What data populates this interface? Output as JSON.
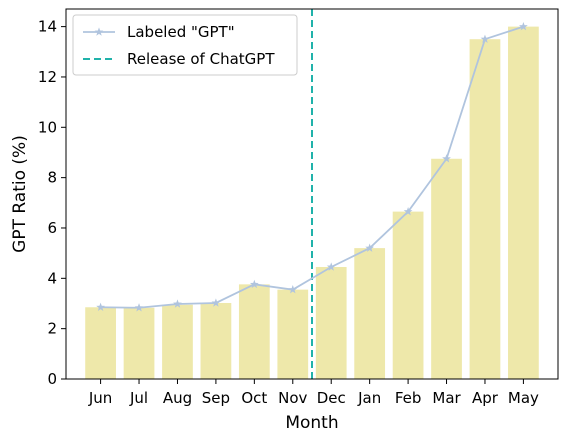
{
  "chart_data": {
    "type": "bar",
    "categories": [
      "Jun",
      "Jul",
      "Aug",
      "Sep",
      "Oct",
      "Nov",
      "Dec",
      "Jan",
      "Feb",
      "Mar",
      "Apr",
      "May"
    ],
    "series": [
      {
        "kind": "bar",
        "values": [
          2.85,
          2.83,
          2.95,
          3.02,
          3.76,
          3.55,
          4.45,
          5.2,
          6.65,
          8.75,
          13.5,
          14.0
        ],
        "color": "#eee8aa"
      },
      {
        "kind": "line",
        "name": "Labeled \"GPT\"",
        "values": [
          2.85,
          2.83,
          2.98,
          3.02,
          3.76,
          3.55,
          4.45,
          5.2,
          6.65,
          8.75,
          13.5,
          14.0
        ],
        "color": "#b0c4de",
        "marker": "star"
      }
    ],
    "annotations": [
      {
        "kind": "vline",
        "label": "Release of ChatGPT",
        "x_position": "between Nov and Dec",
        "color": "#20b2aa",
        "style": "dashed"
      }
    ],
    "xlabel": "Month",
    "ylabel": "GPT Ratio (%)",
    "ylim": [
      0,
      14.7
    ],
    "yticks": [
      0,
      2,
      4,
      6,
      8,
      10,
      12,
      14
    ],
    "grid": false,
    "legend": {
      "position": "top-left",
      "entries": [
        "Labeled \"GPT\"",
        "Release of ChatGPT"
      ]
    }
  }
}
